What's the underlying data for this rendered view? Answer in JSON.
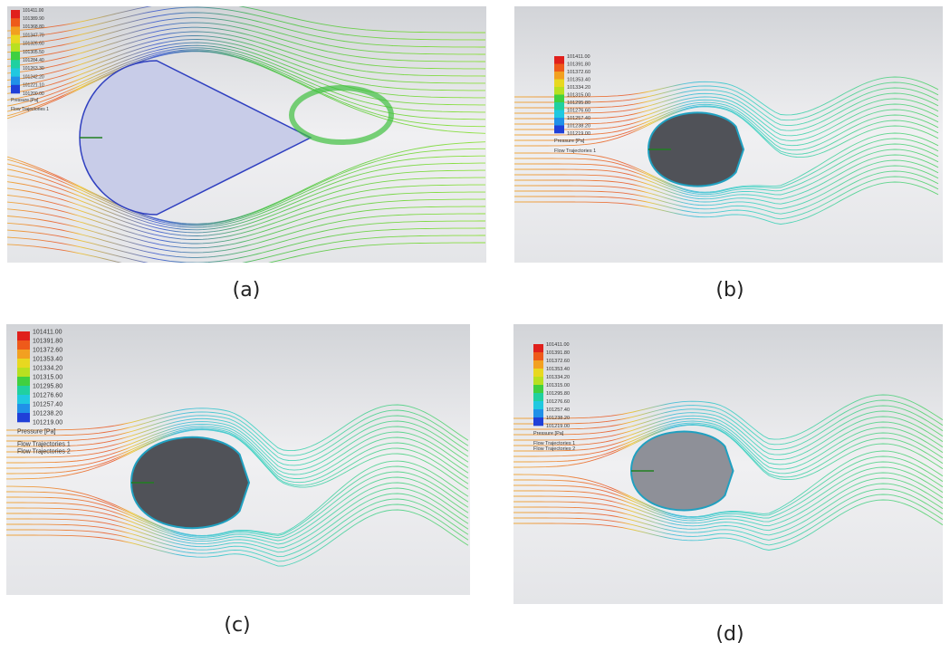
{
  "panels": [
    {
      "caption": "(a)",
      "legend": {
        "values": [
          "101411.00",
          "101389.90",
          "101368.80",
          "101347.70",
          "101326.60",
          "101305.50",
          "101284.40",
          "101263.30",
          "101242.20",
          "101221.10",
          "101200.00"
        ],
        "title": "Pressure [Pa]",
        "trajectories": [
          "Flow Trajectories 1"
        ]
      }
    },
    {
      "caption": "(b)",
      "legend": {
        "values": [
          "101411.00",
          "101391.80",
          "101372.60",
          "101353.40",
          "101334.20",
          "101315.00",
          "101295.80",
          "101276.60",
          "101257.40",
          "101238.20",
          "101219.00"
        ],
        "title": "Pressure [Pa]",
        "trajectories": [
          "Flow Trajectories 1"
        ]
      }
    },
    {
      "caption": "(c)",
      "legend": {
        "values": [
          "101411.00",
          "101391.80",
          "101372.60",
          "101353.40",
          "101334.20",
          "101315.00",
          "101295.80",
          "101276.60",
          "101257.40",
          "101238.20",
          "101219.00"
        ],
        "title": "Pressure [Pa]",
        "trajectories": [
          "Flow Trajectories 1",
          "Flow Trajectories 2"
        ]
      }
    },
    {
      "caption": "(d)",
      "legend": {
        "values": [
          "101411.00",
          "101391.80",
          "101372.60",
          "101353.40",
          "101334.20",
          "101315.00",
          "101295.80",
          "101276.60",
          "101257.40",
          "101238.20",
          "101219.00"
        ],
        "title": "Pressure [Pa]",
        "trajectories": [
          "Flow Trajectories 1",
          "Flow Trajectories 2"
        ]
      }
    }
  ]
}
